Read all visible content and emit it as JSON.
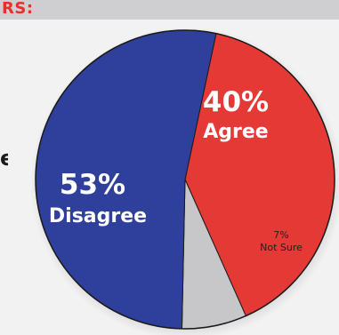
{
  "header": {
    "text": "RS:",
    "band_color": "#cfcfd1",
    "text_color": "#e8302a"
  },
  "left_edge_text": "e",
  "chart_data": {
    "type": "pie",
    "title": "",
    "slices": [
      {
        "label": "Agree",
        "percent_label": "40%",
        "value": 40,
        "color": "#e53935"
      },
      {
        "label": "Not Sure",
        "percent_label": "7%",
        "value": 7,
        "color": "#c7c7c9"
      },
      {
        "label": "Disagree",
        "percent_label": "53%",
        "value": 53,
        "color": "#2f3f9c"
      }
    ],
    "start_angle_deg": -78,
    "direction": "clockwise",
    "legend": "none"
  }
}
